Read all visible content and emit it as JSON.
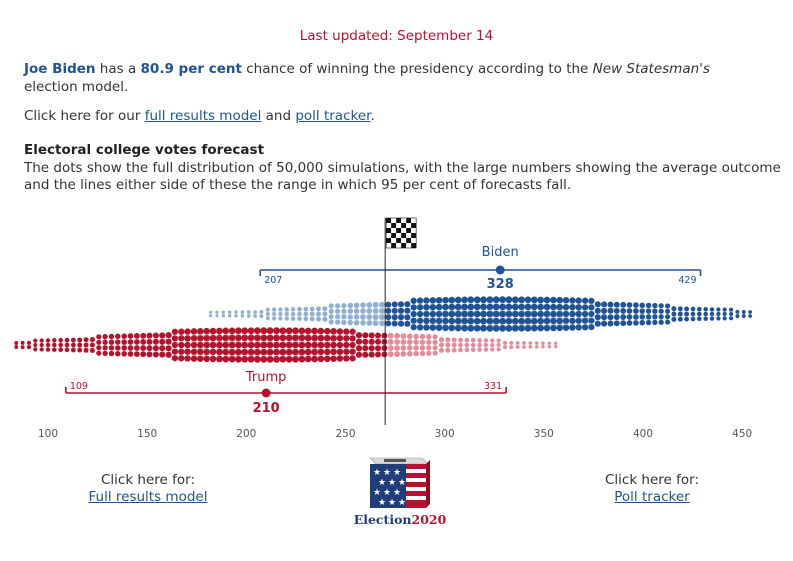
{
  "updated": {
    "text": "Last updated: September 14"
  },
  "intro": {
    "candidate": "Joe Biden",
    "text1": " has a ",
    "probability": "80.9 per cent",
    "text2": " chance of winning the presidency according to the ",
    "publication": "New Statesman's",
    "text3": " election model."
  },
  "links_line": {
    "prefix": "Click here for our ",
    "link1": "full results model",
    "middle": " and ",
    "link2": "poll tracker",
    "suffix": "."
  },
  "section": {
    "title": "Electoral college votes forecast",
    "description": "The dots show the full distribution of 50,000 simulations, with the large numbers showing the average outcome and the lines either side of these the range in which 95 per cent of forecasts fall."
  },
  "chart_data": {
    "type": "scatter",
    "xlim": [
      100,
      460
    ],
    "x_ticks": [
      "100",
      "150",
      "200",
      "250",
      "300",
      "350",
      "400",
      "450"
    ],
    "x_tick_values": [
      100,
      150,
      200,
      250,
      300,
      350,
      400,
      450
    ],
    "threshold": 270,
    "series": [
      {
        "name": "Biden",
        "mean": 328,
        "mean_label": "328",
        "low": 207,
        "low_label": "207",
        "high": 429,
        "high_label": "429",
        "color": "#1f5395",
        "light_color": "#8fb0d1"
      },
      {
        "name": "Trump",
        "mean": 210,
        "mean_label": "210",
        "low": 109,
        "low_label": "109",
        "high": 331,
        "high_label": "331",
        "color": "#b5122d",
        "light_color": "#e48a98"
      }
    ],
    "colors": {
      "biden": "#1f5395",
      "trump": "#b5122d",
      "line": "#222222"
    },
    "icons": {
      "threshold": "checkered-flag-icon"
    }
  },
  "cta_left": {
    "text": "Click here for:",
    "link": "Full results model"
  },
  "cta_right": {
    "text": "Click here for:",
    "link": "Poll tracker"
  },
  "logo": {
    "word": "Election",
    "year": "2020",
    "icon": "ballot-box-icon"
  }
}
